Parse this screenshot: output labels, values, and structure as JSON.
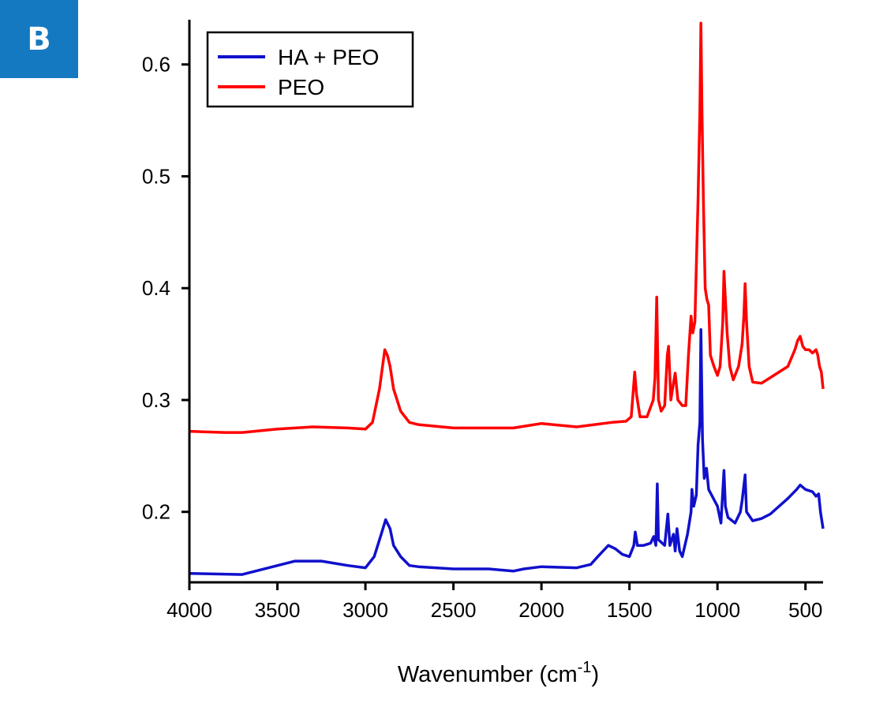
{
  "panel_label": "B",
  "chart_data": {
    "type": "line",
    "xlabel": "Wavenumber (cm",
    "xlabel_superscript": "-1",
    "xlabel_suffix": ")",
    "ylabel": "",
    "xlim": [
      4000,
      400
    ],
    "x_reversed": true,
    "ylim": [
      0.137,
      0.64
    ],
    "xticks": [
      4000,
      3500,
      3000,
      2500,
      2000,
      1500,
      1000,
      500
    ],
    "yticks": [
      0.2,
      0.3,
      0.4,
      0.5,
      0.6
    ],
    "ytick_labels": [
      "0.2",
      "0.3",
      "0.4",
      "0.5",
      "0.6"
    ],
    "grid": false,
    "legend_position": "top-left",
    "series": [
      {
        "name": "HA + PEO",
        "color": "#1010cc",
        "points": [
          [
            4000,
            0.145
          ],
          [
            3700,
            0.144
          ],
          [
            3550,
            0.15
          ],
          [
            3400,
            0.156
          ],
          [
            3250,
            0.156
          ],
          [
            3100,
            0.152
          ],
          [
            3000,
            0.15
          ],
          [
            2950,
            0.16
          ],
          [
            2910,
            0.18
          ],
          [
            2885,
            0.193
          ],
          [
            2860,
            0.185
          ],
          [
            2840,
            0.17
          ],
          [
            2800,
            0.16
          ],
          [
            2750,
            0.152
          ],
          [
            2700,
            0.151
          ],
          [
            2500,
            0.149
          ],
          [
            2300,
            0.149
          ],
          [
            2160,
            0.147
          ],
          [
            2100,
            0.149
          ],
          [
            2000,
            0.151
          ],
          [
            1800,
            0.15
          ],
          [
            1720,
            0.153
          ],
          [
            1680,
            0.16
          ],
          [
            1620,
            0.17
          ],
          [
            1580,
            0.167
          ],
          [
            1540,
            0.162
          ],
          [
            1500,
            0.16
          ],
          [
            1475,
            0.17
          ],
          [
            1467,
            0.182
          ],
          [
            1455,
            0.17
          ],
          [
            1420,
            0.17
          ],
          [
            1380,
            0.172
          ],
          [
            1362,
            0.178
          ],
          [
            1350,
            0.17
          ],
          [
            1342,
            0.225
          ],
          [
            1335,
            0.175
          ],
          [
            1300,
            0.17
          ],
          [
            1282,
            0.198
          ],
          [
            1270,
            0.17
          ],
          [
            1250,
            0.18
          ],
          [
            1240,
            0.165
          ],
          [
            1230,
            0.185
          ],
          [
            1215,
            0.165
          ],
          [
            1200,
            0.16
          ],
          [
            1170,
            0.18
          ],
          [
            1150,
            0.2
          ],
          [
            1145,
            0.22
          ],
          [
            1135,
            0.205
          ],
          [
            1120,
            0.215
          ],
          [
            1110,
            0.26
          ],
          [
            1100,
            0.28
          ],
          [
            1094,
            0.363
          ],
          [
            1085,
            0.265
          ],
          [
            1075,
            0.23
          ],
          [
            1062,
            0.239
          ],
          [
            1050,
            0.22
          ],
          [
            1000,
            0.205
          ],
          [
            980,
            0.19
          ],
          [
            963,
            0.237
          ],
          [
            955,
            0.205
          ],
          [
            940,
            0.195
          ],
          [
            900,
            0.19
          ],
          [
            870,
            0.2
          ],
          [
            860,
            0.21
          ],
          [
            843,
            0.233
          ],
          [
            835,
            0.2
          ],
          [
            800,
            0.192
          ],
          [
            750,
            0.194
          ],
          [
            700,
            0.198
          ],
          [
            600,
            0.212
          ],
          [
            550,
            0.22
          ],
          [
            530,
            0.224
          ],
          [
            500,
            0.22
          ],
          [
            460,
            0.218
          ],
          [
            440,
            0.214
          ],
          [
            425,
            0.216
          ],
          [
            415,
            0.2
          ],
          [
            400,
            0.185
          ]
        ]
      },
      {
        "name": "PEO",
        "color": "#ff0000",
        "points": [
          [
            4000,
            0.272
          ],
          [
            3800,
            0.271
          ],
          [
            3700,
            0.271
          ],
          [
            3500,
            0.274
          ],
          [
            3300,
            0.276
          ],
          [
            3100,
            0.275
          ],
          [
            3000,
            0.274
          ],
          [
            2960,
            0.28
          ],
          [
            2920,
            0.31
          ],
          [
            2890,
            0.345
          ],
          [
            2875,
            0.34
          ],
          [
            2860,
            0.33
          ],
          [
            2840,
            0.31
          ],
          [
            2800,
            0.29
          ],
          [
            2750,
            0.28
          ],
          [
            2700,
            0.278
          ],
          [
            2500,
            0.275
          ],
          [
            2300,
            0.275
          ],
          [
            2160,
            0.275
          ],
          [
            2000,
            0.279
          ],
          [
            1800,
            0.276
          ],
          [
            1600,
            0.28
          ],
          [
            1520,
            0.281
          ],
          [
            1490,
            0.285
          ],
          [
            1470,
            0.325
          ],
          [
            1460,
            0.305
          ],
          [
            1440,
            0.285
          ],
          [
            1400,
            0.285
          ],
          [
            1365,
            0.3
          ],
          [
            1355,
            0.32
          ],
          [
            1345,
            0.392
          ],
          [
            1335,
            0.3
          ],
          [
            1320,
            0.29
          ],
          [
            1300,
            0.295
          ],
          [
            1285,
            0.34
          ],
          [
            1278,
            0.348
          ],
          [
            1265,
            0.3
          ],
          [
            1250,
            0.315
          ],
          [
            1240,
            0.324
          ],
          [
            1225,
            0.3
          ],
          [
            1200,
            0.295
          ],
          [
            1180,
            0.295
          ],
          [
            1165,
            0.34
          ],
          [
            1150,
            0.375
          ],
          [
            1140,
            0.36
          ],
          [
            1128,
            0.37
          ],
          [
            1120,
            0.42
          ],
          [
            1110,
            0.48
          ],
          [
            1100,
            0.56
          ],
          [
            1094,
            0.637
          ],
          [
            1088,
            0.56
          ],
          [
            1080,
            0.48
          ],
          [
            1070,
            0.4
          ],
          [
            1060,
            0.39
          ],
          [
            1050,
            0.385
          ],
          [
            1040,
            0.34
          ],
          [
            1020,
            0.33
          ],
          [
            1000,
            0.322
          ],
          [
            985,
            0.33
          ],
          [
            970,
            0.37
          ],
          [
            963,
            0.415
          ],
          [
            955,
            0.39
          ],
          [
            945,
            0.36
          ],
          [
            930,
            0.33
          ],
          [
            910,
            0.318
          ],
          [
            880,
            0.33
          ],
          [
            860,
            0.35
          ],
          [
            850,
            0.375
          ],
          [
            843,
            0.404
          ],
          [
            835,
            0.37
          ],
          [
            820,
            0.33
          ],
          [
            800,
            0.316
          ],
          [
            750,
            0.315
          ],
          [
            700,
            0.32
          ],
          [
            650,
            0.325
          ],
          [
            600,
            0.33
          ],
          [
            560,
            0.345
          ],
          [
            545,
            0.353
          ],
          [
            530,
            0.357
          ],
          [
            515,
            0.348
          ],
          [
            500,
            0.345
          ],
          [
            480,
            0.345
          ],
          [
            460,
            0.342
          ],
          [
            440,
            0.345
          ],
          [
            430,
            0.34
          ],
          [
            420,
            0.33
          ],
          [
            410,
            0.325
          ],
          [
            400,
            0.31
          ]
        ]
      }
    ]
  }
}
